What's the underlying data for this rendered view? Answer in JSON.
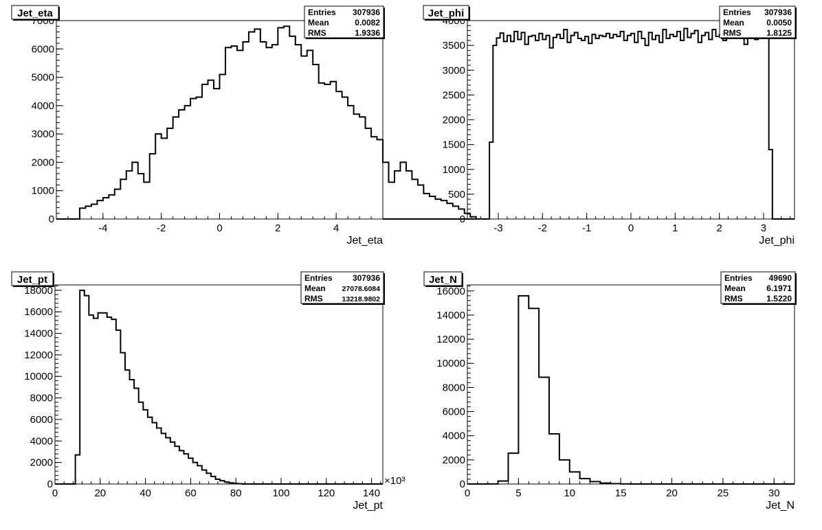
{
  "chart_data": [
    {
      "type": "histogram",
      "title": "Jet_eta",
      "xlabel": "Jet_eta",
      "xlim": [
        -5.6,
        5.6
      ],
      "ylim": [
        0,
        7000
      ],
      "xticks": [
        -4,
        -2,
        0,
        2,
        4
      ],
      "yticks": [
        0,
        1000,
        2000,
        3000,
        4000,
        5000,
        6000,
        7000
      ],
      "grid": false,
      "stats_box": {
        "rows": [
          {
            "label": "Entries",
            "value": "307936"
          },
          {
            "label": "Mean",
            "value": "0.0082"
          },
          {
            "label": "RMS",
            "value": "1.9336"
          }
        ]
      },
      "bins": {
        "start": -4.8,
        "width": 0.2,
        "counts": [
          380,
          450,
          520,
          650,
          750,
          850,
          1050,
          1400,
          1700,
          2000,
          1600,
          1300,
          2300,
          3000,
          2850,
          3200,
          3600,
          3850,
          4000,
          4250,
          4300,
          4750,
          4900,
          4600,
          5100,
          6050,
          6100,
          5950,
          6250,
          6600,
          6700,
          6250,
          6050,
          6150,
          6750,
          6800,
          6450,
          6150,
          5750,
          5950,
          5450,
          4800,
          4750,
          4850,
          4500,
          4300,
          4000,
          3700,
          3600,
          3200,
          2900,
          2800,
          2000,
          1300,
          1700,
          2000,
          1700,
          1400,
          1200,
          900,
          800,
          700,
          650,
          550,
          450,
          350,
          200,
          80
        ]
      }
    },
    {
      "type": "histogram",
      "title": "Jet_phi",
      "xlabel": "Jet_phi",
      "xlim": [
        -3.7,
        3.7
      ],
      "ylim": [
        0,
        4000
      ],
      "xticks": [
        -3,
        -2,
        -1,
        0,
        1,
        2,
        3
      ],
      "yticks": [
        0,
        500,
        1000,
        1500,
        2000,
        2500,
        3000,
        3500,
        4000
      ],
      "grid": false,
      "stats_box": {
        "rows": [
          {
            "label": "Entries",
            "value": "307936"
          },
          {
            "label": "Mean",
            "value": "0.0050"
          },
          {
            "label": "RMS",
            "value": "1.8125"
          }
        ]
      },
      "bins": {
        "start": -3.2,
        "width": 0.08,
        "counts": [
          1550,
          3500,
          3650,
          3750,
          3580,
          3700,
          3580,
          3780,
          3620,
          3760,
          3520,
          3680,
          3700,
          3600,
          3740,
          3620,
          3700,
          3450,
          3660,
          3720,
          3640,
          3820,
          3560,
          3700,
          3760,
          3640,
          3600,
          3680,
          3540,
          3720,
          3640,
          3700,
          3680,
          3740,
          3650,
          3720,
          3680,
          3780,
          3600,
          3700,
          3740,
          3560,
          3780,
          3640,
          3500,
          3760,
          3620,
          3700,
          3560,
          3820,
          3640,
          3720,
          3680,
          3780,
          3600,
          3840,
          3660,
          3740,
          3800,
          3560,
          3700,
          3760,
          3620,
          3820,
          3680,
          3720,
          3600,
          3780,
          3650,
          3700,
          3850,
          3680,
          3520,
          3760,
          3780,
          3620,
          3860,
          3680,
          3720,
          1400
        ]
      }
    },
    {
      "type": "histogram",
      "title": "Jet_pt",
      "xlabel": "Jet_pt",
      "axis_exponent": "×10³",
      "xlim": [
        0,
        145
      ],
      "ylim": [
        0,
        18500
      ],
      "xticks": [
        0,
        20,
        40,
        60,
        80,
        100,
        120,
        140
      ],
      "yticks": [
        0,
        2000,
        4000,
        6000,
        8000,
        10000,
        12000,
        14000,
        16000,
        18000
      ],
      "grid": false,
      "stats_box": {
        "rows": [
          {
            "label": "Entries",
            "value": "307936"
          },
          {
            "label": "Mean",
            "value": "27078.6084"
          },
          {
            "label": "RMS",
            "value": "13218.9802"
          }
        ]
      },
      "bins": {
        "start": 9,
        "width": 2,
        "counts": [
          2700,
          18000,
          17500,
          15700,
          15400,
          15900,
          15900,
          15500,
          15300,
          14300,
          12200,
          10600,
          9700,
          8900,
          7600,
          6900,
          6200,
          5700,
          5200,
          4700,
          4300,
          3900,
          3500,
          3100,
          2800,
          2400,
          2000,
          1700,
          1300,
          1000,
          700,
          450,
          300,
          180,
          100,
          50,
          20
        ]
      }
    },
    {
      "type": "histogram",
      "title": "Jet_N",
      "xlabel": "Jet_N",
      "xlim": [
        0,
        32
      ],
      "ylim": [
        0,
        16500
      ],
      "xticks": [
        0,
        5,
        10,
        15,
        20,
        25,
        30
      ],
      "yticks": [
        0,
        2000,
        4000,
        6000,
        8000,
        10000,
        12000,
        14000,
        16000
      ],
      "grid": false,
      "stats_box": {
        "rows": [
          {
            "label": "Entries",
            "value": "49690"
          },
          {
            "label": "Mean",
            "value": "6.1971"
          },
          {
            "label": "RMS",
            "value": "1.5220"
          }
        ]
      },
      "bins": {
        "start": 2,
        "width": 1,
        "counts": [
          5,
          250,
          2550,
          15600,
          14550,
          8850,
          4150,
          2000,
          1000,
          450,
          200,
          80,
          30,
          10
        ]
      }
    }
  ]
}
